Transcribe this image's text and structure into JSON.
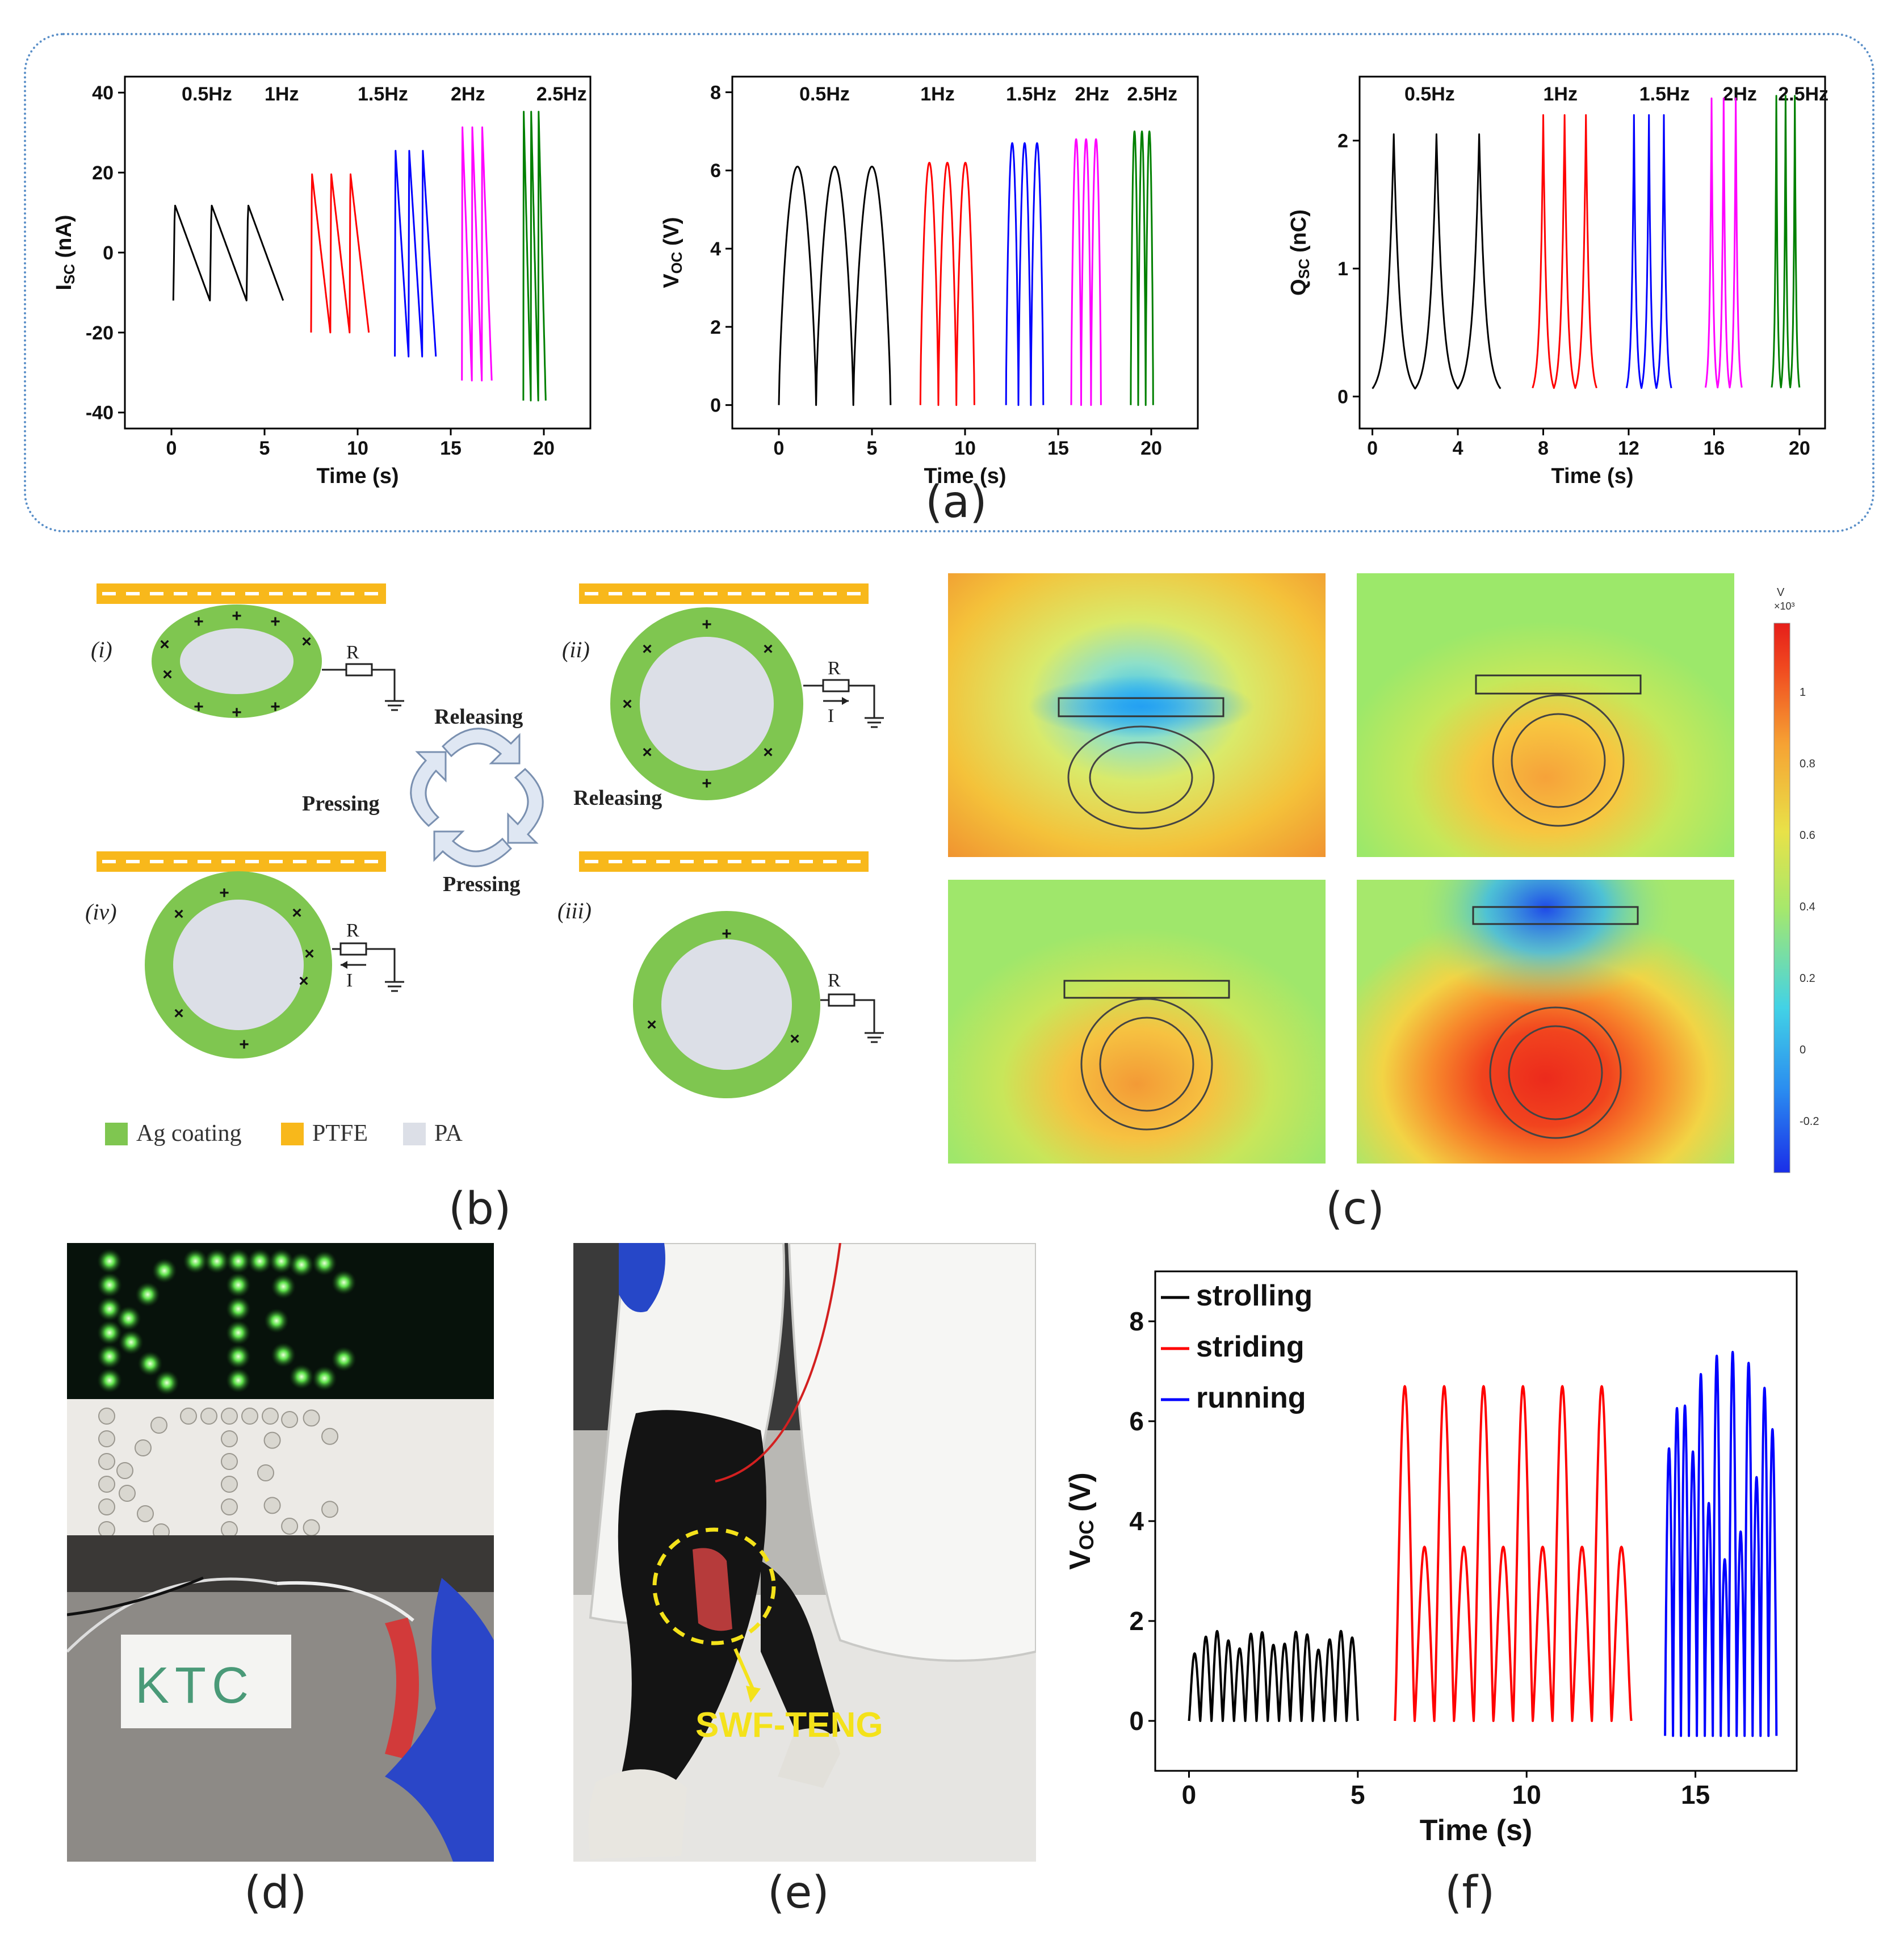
{
  "figure": {
    "panel_labels": {
      "a": "(a)",
      "b": "(b)",
      "c": "(c)",
      "d": "(d)",
      "e": "(e)",
      "f": "(f)"
    },
    "frame_color": "#5a8fc8"
  },
  "chart_data": [
    {
      "id": "isc",
      "type": "line",
      "title": "",
      "xlabel": "Time (s)",
      "ylabel_main": "I",
      "ylabel_sub": "SC",
      "ylabel_unit": "(nA)",
      "xlim": [
        -2.5,
        22.5
      ],
      "ylim": [
        -44,
        44
      ],
      "xticks": [
        0,
        5,
        10,
        15,
        20
      ],
      "yticks": [
        -40,
        -20,
        0,
        20,
        40
      ],
      "freq_labels": [
        "0.5Hz",
        "1Hz",
        "1.5Hz",
        "2Hz",
        "2.5Hz"
      ],
      "series": [
        {
          "name": "0.5Hz",
          "color": "#000000",
          "x_range": [
            0.1,
            6.0
          ],
          "cycles": 3,
          "min": -12,
          "max": 12
        },
        {
          "name": "1Hz",
          "color": "#ff0000",
          "x_range": [
            7.5,
            10.6
          ],
          "cycles": 3,
          "min": -20,
          "max": 20
        },
        {
          "name": "1.5Hz",
          "color": "#0000ff",
          "x_range": [
            12.0,
            14.2
          ],
          "cycles": 3,
          "min": -26,
          "max": 26
        },
        {
          "name": "2Hz",
          "color": "#ff00ff",
          "x_range": [
            15.6,
            17.2
          ],
          "cycles": 3,
          "min": -32,
          "max": 32
        },
        {
          "name": "2.5Hz",
          "color": "#008000",
          "x_range": [
            18.9,
            20.1
          ],
          "cycles": 3,
          "min": -37,
          "max": 36
        }
      ]
    },
    {
      "id": "voc",
      "type": "line",
      "title": "",
      "xlabel": "Time (s)",
      "ylabel_main": "V",
      "ylabel_sub": "OC",
      "ylabel_unit": "(V)",
      "xlim": [
        -2.5,
        22.5
      ],
      "ylim": [
        -0.6,
        8.4
      ],
      "xticks": [
        0,
        5,
        10,
        15,
        20
      ],
      "yticks": [
        0,
        2,
        4,
        6,
        8
      ],
      "freq_labels": [
        "0.5Hz",
        "1Hz",
        "1.5Hz",
        "2Hz",
        "2.5Hz"
      ],
      "series": [
        {
          "name": "0.5Hz",
          "color": "#000000",
          "x_range": [
            0.0,
            6.0
          ],
          "cycles": 3,
          "min": 0,
          "max": 6.1
        },
        {
          "name": "1Hz",
          "color": "#ff0000",
          "x_range": [
            7.6,
            10.5
          ],
          "cycles": 3,
          "min": 0,
          "max": 6.2
        },
        {
          "name": "1.5Hz",
          "color": "#0000ff",
          "x_range": [
            12.2,
            14.2
          ],
          "cycles": 3,
          "min": 0,
          "max": 6.7
        },
        {
          "name": "2Hz",
          "color": "#ff00ff",
          "x_range": [
            15.7,
            17.3
          ],
          "cycles": 3,
          "min": 0,
          "max": 6.8
        },
        {
          "name": "2.5Hz",
          "color": "#008000",
          "x_range": [
            18.9,
            20.1
          ],
          "cycles": 3,
          "min": 0,
          "max": 7.0
        }
      ]
    },
    {
      "id": "qsc",
      "type": "line",
      "title": "",
      "xlabel": "Time (s)",
      "ylabel_main": "Q",
      "ylabel_sub": "SC",
      "ylabel_unit": "(nC)",
      "xlim": [
        -0.6,
        21.2
      ],
      "ylim": [
        -0.25,
        2.5
      ],
      "xticks": [
        0,
        4,
        8,
        12,
        16,
        20
      ],
      "yticks": [
        0,
        1,
        2
      ],
      "freq_labels": [
        "0.5Hz",
        "1Hz",
        "1.5Hz",
        "2Hz",
        "2.5Hz"
      ],
      "series": [
        {
          "name": "0.5Hz",
          "color": "#000000",
          "x_range": [
            0.0,
            6.0
          ],
          "cycles": 3,
          "min": 0,
          "max": 2.05
        },
        {
          "name": "1Hz",
          "color": "#ff0000",
          "x_range": [
            7.5,
            10.5
          ],
          "cycles": 3,
          "min": 0,
          "max": 2.2
        },
        {
          "name": "1.5Hz",
          "color": "#0000ff",
          "x_range": [
            11.9,
            14.0
          ],
          "cycles": 3,
          "min": 0,
          "max": 2.2
        },
        {
          "name": "2Hz",
          "color": "#ff00ff",
          "x_range": [
            15.6,
            17.3
          ],
          "cycles": 3,
          "min": 0,
          "max": 2.33
        },
        {
          "name": "2.5Hz",
          "color": "#008000",
          "x_range": [
            18.7,
            20.0
          ],
          "cycles": 3,
          "min": 0,
          "max": 2.35
        }
      ]
    },
    {
      "id": "walk",
      "type": "line",
      "title": "",
      "xlabel": "Time (s)",
      "ylabel_main": "V",
      "ylabel_sub": "OC",
      "ylabel_unit": "(V)",
      "xlim": [
        -1,
        18
      ],
      "ylim": [
        -1,
        9
      ],
      "xticks": [
        0,
        5,
        10,
        15
      ],
      "yticks": [
        0,
        2,
        4,
        6,
        8
      ],
      "series": [
        {
          "name": "strolling",
          "color": "#000000",
          "x_range": [
            0.0,
            5.0
          ],
          "cycles": 15,
          "min": 0.0,
          "max": 1.8
        },
        {
          "name": "striding",
          "color": "#ff0000",
          "x_range": [
            6.1,
            13.1
          ],
          "cycles": 12,
          "min": 0.0,
          "max": 6.7
        },
        {
          "name": "running",
          "color": "#0000ff",
          "x_range": [
            14.1,
            17.4
          ],
          "cycles": 14,
          "min": -0.3,
          "max": 7.8
        }
      ]
    }
  ],
  "panel_b": {
    "states": [
      "(i)",
      "(ii)",
      "(iii)",
      "(iv)"
    ],
    "resistor_label": "R",
    "current_label": "I",
    "cycle_labels": {
      "top": "Releasing",
      "right": "Releasing",
      "bottom": "Pressing",
      "left": "Pressing"
    },
    "legend": [
      "Ag coating",
      "PTFE",
      "PA"
    ],
    "colors": {
      "ag": "#7fc650",
      "ptfe": "#f8b81b",
      "pa": "#dcdfe7"
    }
  },
  "panel_c": {
    "colorbar_unit": "V",
    "colorbar_scale": "×10³",
    "colorbar_ticks": [
      "1",
      "0.8",
      "0.6",
      "0.4",
      "0.2",
      "0",
      "-0.2"
    ]
  },
  "panel_d": {
    "text": "KTC"
  },
  "panel_e": {
    "callout": "SWF-TENG"
  }
}
